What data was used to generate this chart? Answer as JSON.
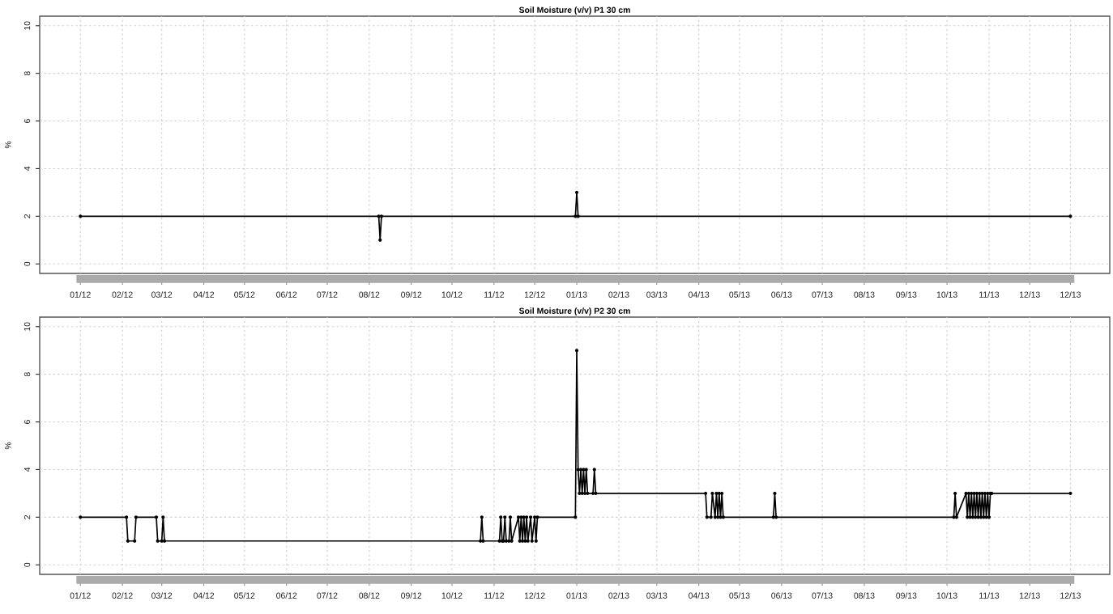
{
  "chart_data": [
    {
      "type": "line",
      "title": "Soil Moisture (v/v) P1 30 cm",
      "ylabel": "%",
      "xlim": [
        "2011-12-02",
        "2014-01-29"
      ],
      "ylim": [
        -0.4,
        10.4
      ],
      "yticks": [
        0,
        2,
        4,
        6,
        8,
        10
      ],
      "grid": true,
      "marker": "circle",
      "line_style": "solid",
      "xticks": [
        {
          "value": "2012-01-01",
          "label": "01/12"
        },
        {
          "value": "2012-02-01",
          "label": "02/12"
        },
        {
          "value": "2012-03-01",
          "label": "03/12"
        },
        {
          "value": "2012-04-01",
          "label": "04/12"
        },
        {
          "value": "2012-05-01",
          "label": "05/12"
        },
        {
          "value": "2012-06-01",
          "label": "06/12"
        },
        {
          "value": "2012-07-01",
          "label": "07/12"
        },
        {
          "value": "2012-08-01",
          "label": "08/12"
        },
        {
          "value": "2012-09-01",
          "label": "09/12"
        },
        {
          "value": "2012-10-01",
          "label": "10/12"
        },
        {
          "value": "2012-11-01",
          "label": "11/12"
        },
        {
          "value": "2012-12-01",
          "label": "12/12"
        },
        {
          "value": "2013-01-01",
          "label": "01/13"
        },
        {
          "value": "2013-02-01",
          "label": "02/13"
        },
        {
          "value": "2013-03-01",
          "label": "03/13"
        },
        {
          "value": "2013-04-01",
          "label": "04/13"
        },
        {
          "value": "2013-05-01",
          "label": "05/13"
        },
        {
          "value": "2013-06-01",
          "label": "06/13"
        },
        {
          "value": "2013-07-01",
          "label": "07/13"
        },
        {
          "value": "2013-08-01",
          "label": "08/13"
        },
        {
          "value": "2013-09-01",
          "label": "09/13"
        },
        {
          "value": "2013-10-01",
          "label": "10/13"
        },
        {
          "value": "2013-11-01",
          "label": "11/13"
        },
        {
          "value": "2013-12-01",
          "label": "12/13"
        },
        {
          "value": "2013-12-31",
          "label": "12/13"
        }
      ],
      "series": [
        {
          "color": "#000000",
          "x": [
            "2012-01-01",
            "2012-08-08",
            "2012-08-09",
            "2012-08-10",
            "2012-12-31",
            "2013-01-01",
            "2013-01-02",
            "2013-12-31"
          ],
          "values": [
            2,
            2,
            1,
            2,
            2,
            3,
            2,
            2
          ]
        }
      ]
    },
    {
      "type": "line",
      "title": "Soil Moisture (v/v) P2 30 cm",
      "ylabel": "%",
      "xlim": [
        "2011-12-02",
        "2014-01-29"
      ],
      "ylim": [
        -0.4,
        10.4
      ],
      "yticks": [
        0,
        2,
        4,
        6,
        8,
        10
      ],
      "grid": true,
      "marker": "circle",
      "line_style": "solid",
      "xticks": [
        {
          "value": "2012-01-01",
          "label": "01/12"
        },
        {
          "value": "2012-02-01",
          "label": "02/12"
        },
        {
          "value": "2012-03-01",
          "label": "03/12"
        },
        {
          "value": "2012-04-01",
          "label": "04/12"
        },
        {
          "value": "2012-05-01",
          "label": "05/12"
        },
        {
          "value": "2012-06-01",
          "label": "06/12"
        },
        {
          "value": "2012-07-01",
          "label": "07/12"
        },
        {
          "value": "2012-08-01",
          "label": "08/12"
        },
        {
          "value": "2012-09-01",
          "label": "09/12"
        },
        {
          "value": "2012-10-01",
          "label": "10/12"
        },
        {
          "value": "2012-11-01",
          "label": "11/12"
        },
        {
          "value": "2012-12-01",
          "label": "12/12"
        },
        {
          "value": "2013-01-01",
          "label": "01/13"
        },
        {
          "value": "2013-02-01",
          "label": "02/13"
        },
        {
          "value": "2013-03-01",
          "label": "03/13"
        },
        {
          "value": "2013-04-01",
          "label": "04/13"
        },
        {
          "value": "2013-05-01",
          "label": "05/13"
        },
        {
          "value": "2013-06-01",
          "label": "06/13"
        },
        {
          "value": "2013-07-01",
          "label": "07/13"
        },
        {
          "value": "2013-08-01",
          "label": "08/13"
        },
        {
          "value": "2013-09-01",
          "label": "09/13"
        },
        {
          "value": "2013-10-01",
          "label": "10/13"
        },
        {
          "value": "2013-11-01",
          "label": "11/13"
        },
        {
          "value": "2013-12-01",
          "label": "12/13"
        },
        {
          "value": "2013-12-31",
          "label": "12/13"
        }
      ],
      "series": [
        {
          "color": "#000000",
          "x": [
            "2012-01-01",
            "2012-02-04",
            "2012-02-05",
            "2012-02-10",
            "2012-02-11",
            "2012-02-26",
            "2012-02-27",
            "2012-03-01",
            "2012-03-02",
            "2012-03-03",
            "2012-10-22",
            "2012-10-23",
            "2012-10-24",
            "2012-11-05",
            "2012-11-06",
            "2012-11-07",
            "2012-11-08",
            "2012-11-09",
            "2012-11-10",
            "2012-11-12",
            "2012-11-13",
            "2012-11-14",
            "2012-11-19",
            "2012-11-20",
            "2012-11-21",
            "2012-11-22",
            "2012-11-23",
            "2012-11-24",
            "2012-11-25",
            "2012-11-26",
            "2012-11-28",
            "2012-11-29",
            "2012-12-01",
            "2012-12-02",
            "2012-12-03",
            "2012-12-31",
            "2013-01-01",
            "2013-01-02",
            "2013-01-03",
            "2013-01-04",
            "2013-01-05",
            "2013-01-06",
            "2013-01-07",
            "2013-01-08",
            "2013-01-09",
            "2013-01-13",
            "2013-01-14",
            "2013-01-15",
            "2013-04-06",
            "2013-04-07",
            "2013-04-10",
            "2013-04-11",
            "2013-04-13",
            "2013-04-14",
            "2013-04-15",
            "2013-04-16",
            "2013-04-17",
            "2013-04-18",
            "2013-04-19",
            "2013-05-26",
            "2013-05-27",
            "2013-05-28",
            "2013-10-06",
            "2013-10-07",
            "2013-10-08",
            "2013-10-15",
            "2013-10-16",
            "2013-10-17",
            "2013-10-18",
            "2013-10-19",
            "2013-10-20",
            "2013-10-21",
            "2013-10-22",
            "2013-10-23",
            "2013-10-24",
            "2013-10-25",
            "2013-10-26",
            "2013-10-27",
            "2013-10-28",
            "2013-10-29",
            "2013-10-30",
            "2013-10-31",
            "2013-11-01",
            "2013-11-02",
            "2013-11-03",
            "2013-12-31"
          ],
          "values": [
            2,
            2,
            1,
            1,
            2,
            2,
            1,
            1,
            2,
            1,
            1,
            2,
            1,
            1,
            2,
            1,
            1,
            2,
            1,
            1,
            2,
            1,
            2,
            1,
            2,
            1,
            2,
            1,
            2,
            1,
            2,
            1,
            2,
            1,
            2,
            2,
            9,
            4,
            3,
            4,
            3,
            4,
            3,
            4,
            3,
            3,
            4,
            3,
            3,
            2,
            2,
            3,
            2,
            3,
            2,
            3,
            2,
            3,
            2,
            2,
            3,
            2,
            2,
            3,
            2,
            3,
            2,
            3,
            2,
            3,
            2,
            3,
            2,
            3,
            2,
            3,
            2,
            3,
            2,
            3,
            2,
            3,
            2,
            3,
            3,
            3
          ]
        }
      ]
    }
  ]
}
